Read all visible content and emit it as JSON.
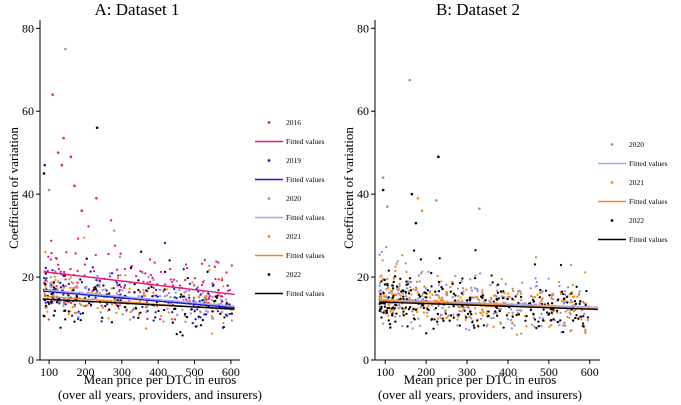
{
  "chart_data": [
    {
      "type": "scatter",
      "title": "A: Dataset 1",
      "xlabel": [
        "Mean price per DTC in euros",
        "(over all years, providers, and insurers)"
      ],
      "ylabel": "Coefficient of variation",
      "xlim": [
        75,
        625
      ],
      "ylim": [
        0,
        82
      ],
      "xticks": [
        100,
        200,
        300,
        400,
        500,
        600
      ],
      "yticks": [
        0,
        20,
        40,
        60,
        80
      ],
      "legend_placement": "right",
      "series": [
        {
          "name": "2016",
          "color": "#e8177d",
          "fit_name": "Fitted values",
          "fit_color": "#e8177d",
          "fit": [
            [
              85,
              21.3
            ],
            [
              610,
              15.8
            ]
          ]
        },
        {
          "name": "2019",
          "color": "#1a1ad6",
          "fit_name": "Fitted values",
          "fit_color": "#1a1ad6",
          "fit": [
            [
              85,
              16.6
            ],
            [
              610,
              12.6
            ]
          ]
        },
        {
          "name": "2020",
          "color": "#8f8fd6",
          "fit_name": "Fitted values",
          "fit_color": "#a7a7e8",
          "fit": [
            [
              85,
              16.9
            ],
            [
              610,
              13.0
            ]
          ]
        },
        {
          "name": "2021",
          "color": "#f28a1e",
          "fit_name": "Fitted values",
          "fit_color": "#f28a1e",
          "fit": [
            [
              85,
              15.4
            ],
            [
              610,
              12.1
            ]
          ]
        },
        {
          "name": "2022",
          "color": "#000000",
          "fit_name": "Fitted values",
          "fit_color": "#000000",
          "fit": [
            [
              85,
              14.7
            ],
            [
              610,
              12.3
            ]
          ]
        }
      ],
      "outliers": [
        {
          "series": "2020",
          "x": 145,
          "y": 75
        },
        {
          "series": "2016",
          "x": 110,
          "y": 64
        },
        {
          "series": "2022",
          "x": 232,
          "y": 56
        },
        {
          "series": "2016",
          "x": 140,
          "y": 53.5
        },
        {
          "series": "2016",
          "x": 125,
          "y": 50
        },
        {
          "series": "2016",
          "x": 160,
          "y": 49
        },
        {
          "series": "2016",
          "x": 135,
          "y": 47
        },
        {
          "series": "2019",
          "x": 88,
          "y": 47
        },
        {
          "series": "2022",
          "x": 86,
          "y": 45
        },
        {
          "series": "2016",
          "x": 170,
          "y": 42
        },
        {
          "series": "2020",
          "x": 100,
          "y": 41
        },
        {
          "series": "2016",
          "x": 230,
          "y": 39
        },
        {
          "series": "2016",
          "x": 190,
          "y": 36
        }
      ]
    },
    {
      "type": "scatter",
      "title": "B: Dataset 2",
      "xlabel": [
        "Mean price per DTC in euros",
        "(over all years, providers, and insurers)"
      ],
      "ylabel": "Coefficient of variation",
      "xlim": [
        75,
        625
      ],
      "ylim": [
        0,
        82
      ],
      "xticks": [
        100,
        200,
        300,
        400,
        500,
        600
      ],
      "yticks": [
        0,
        20,
        40,
        60,
        80
      ],
      "legend_placement": "right",
      "series": [
        {
          "name": "2020",
          "color": "#8f8fd6",
          "fit_name": "Fitted values",
          "fit_color": "#a7a7e8",
          "fit": [
            [
              85,
              14.6
            ],
            [
              620,
              12.7
            ]
          ]
        },
        {
          "name": "2021",
          "color": "#f28a1e",
          "fit_name": "Fitted values",
          "fit_color": "#f28a1e",
          "fit": [
            [
              85,
              14.4
            ],
            [
              620,
              12.3
            ]
          ]
        },
        {
          "name": "2022",
          "color": "#000000",
          "fit_name": "Fitted values",
          "fit_color": "#000000",
          "fit": [
            [
              85,
              14.0
            ],
            [
              620,
              12.2
            ]
          ]
        }
      ],
      "outliers": [
        {
          "series": "2020",
          "x": 160,
          "y": 67.5
        },
        {
          "series": "2022",
          "x": 230,
          "y": 49
        },
        {
          "series": "2020",
          "x": 95,
          "y": 44
        },
        {
          "series": "2022",
          "x": 95,
          "y": 41
        },
        {
          "series": "2022",
          "x": 165,
          "y": 40
        },
        {
          "series": "2021",
          "x": 180,
          "y": 39
        },
        {
          "series": "2020",
          "x": 225,
          "y": 38.5
        },
        {
          "series": "2020",
          "x": 105,
          "y": 37
        },
        {
          "series": "2020",
          "x": 330,
          "y": 36.5
        },
        {
          "series": "2021",
          "x": 190,
          "y": 36
        },
        {
          "series": "2022",
          "x": 175,
          "y": 33
        }
      ]
    }
  ]
}
